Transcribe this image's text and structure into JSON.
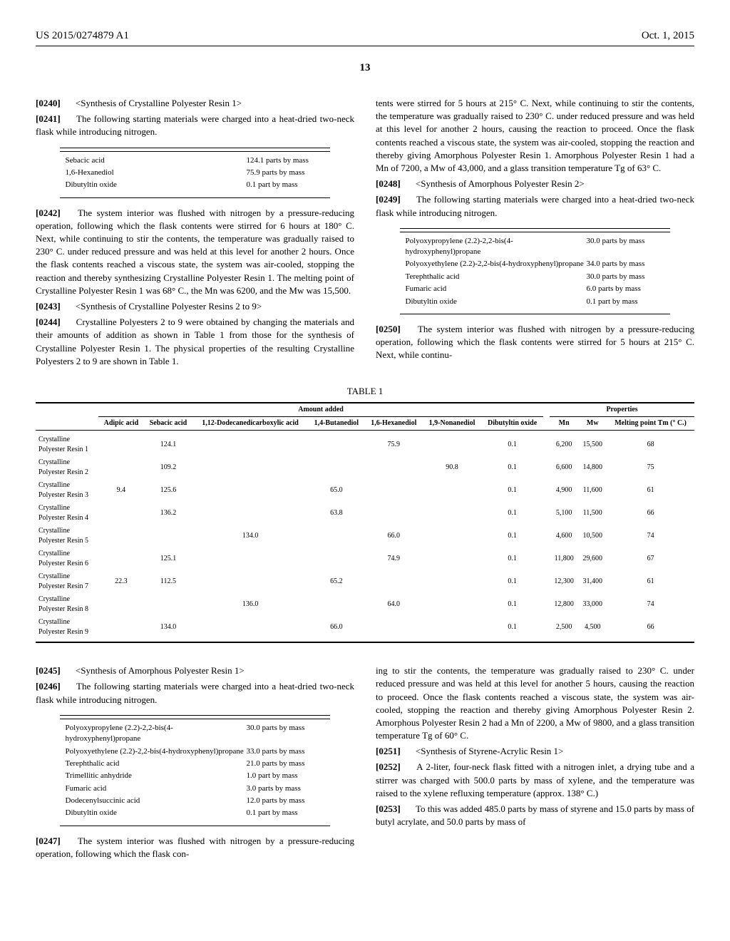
{
  "header": {
    "pub_num": "US 2015/0274879 A1",
    "pub_date": "Oct. 1, 2015"
  },
  "page_num": "13",
  "col1": {
    "p0240": {
      "num": "[0240]",
      "text": "<Synthesis of Crystalline Polyester Resin 1>"
    },
    "p0241": {
      "num": "[0241]",
      "text": "The following starting materials were charged into a heat-dried two-neck flask while introducing nitrogen."
    },
    "table1": [
      {
        "label": "Sebacic acid",
        "val": "124.1  parts by mass"
      },
      {
        "label": "1,6-Hexanediol",
        "val": "75.9  parts by mass"
      },
      {
        "label": "Dibutyltin oxide",
        "val": "0.1  part by mass"
      }
    ],
    "p0242": {
      "num": "[0242]",
      "text": "The system interior was flushed with nitrogen by a pressure-reducing operation, following which the flask contents were stirred for 6 hours at 180° C. Next, while continuing to stir the contents, the temperature was gradually raised to 230° C. under reduced pressure and was held at this level for another 2 hours. Once the flask contents reached a viscous state, the system was air-cooled, stopping the reaction and thereby synthesizing Crystalline Polyester Resin 1. The melting point of Crystalline Polyester Resin 1 was 68° C., the Mn was 6200, and the Mw was 15,500."
    },
    "p0243": {
      "num": "[0243]",
      "text": "<Synthesis of Crystalline Polyester Resins 2 to 9>"
    },
    "p0244": {
      "num": "[0244]",
      "text": "Crystalline Polyesters 2 to 9 were obtained by changing the materials and their amounts of addition as shown in Table 1 from those for the synthesis of Crystalline Polyester Resin 1. The physical properties of the resulting Crystalline Polyesters 2 to 9 are shown in Table 1."
    },
    "p0245": {
      "num": "[0245]",
      "text": "<Synthesis of Amorphous Polyester Resin 1>"
    },
    "p0246": {
      "num": "[0246]",
      "text": "The following starting materials were charged into a heat-dried two-neck flask while introducing nitrogen."
    },
    "table3": [
      {
        "label": "Polyoxypropylene (2.2)-2,2-bis(4-hydroxyphenyl)propane",
        "val": "30.0  parts by mass"
      },
      {
        "label": "Polyoxyethylene (2.2)-2,2-bis(4-hydroxyphenyl)propane",
        "val": "33.0  parts by mass"
      },
      {
        "label": "Terephthalic acid",
        "val": "21.0  parts by mass"
      },
      {
        "label": "Trimellitic anhydride",
        "val": "1.0  part by mass"
      },
      {
        "label": "Fumaric acid",
        "val": "3.0  parts by mass"
      },
      {
        "label": "Dodecenylsuccinic acid",
        "val": "12.0  parts by mass"
      },
      {
        "label": "Dibutyltin oxide",
        "val": "0.1  part by mass"
      }
    ],
    "p0247": {
      "num": "[0247]",
      "text": "The system interior was flushed with nitrogen by a pressure-reducing operation, following which the flask con-"
    }
  },
  "col2": {
    "cont1": "tents were stirred for 5 hours at 215° C. Next, while continuing to stir the contents, the temperature was gradually raised to 230° C. under reduced pressure and was held at this level for another 2 hours, causing the reaction to proceed. Once the flask contents reached a viscous state, the system was air-cooled, stopping the reaction and thereby giving Amorphous Polyester Resin 1. Amorphous Polyester Resin 1 had a Mn of 7200, a Mw of 43,000, and a glass transition temperature Tg of 63° C.",
    "p0248": {
      "num": "[0248]",
      "text": "<Synthesis of Amorphous Polyester Resin 2>"
    },
    "p0249": {
      "num": "[0249]",
      "text": "The following starting materials were charged into a heat-dried two-neck flask while introducing nitrogen."
    },
    "table2": [
      {
        "label": "Polyoxypropylene (2.2)-2,2-bis(4-hydroxyphenyl)propane",
        "val": "30.0  parts by mass"
      },
      {
        "label": "Polyoxyethylene (2.2)-2,2-bis(4-hydroxyphenyl)propane",
        "val": "34.0  parts by mass"
      },
      {
        "label": "Terephthalic acid",
        "val": "30.0  parts by mass"
      },
      {
        "label": "Fumaric acid",
        "val": "6.0  parts by mass"
      },
      {
        "label": "Dibutyltin oxide",
        "val": "0.1  part by mass"
      }
    ],
    "p0250": {
      "num": "[0250]",
      "text": "The system interior was flushed with nitrogen by a pressure-reducing operation, following which the flask contents were stirred for 5 hours at 215° C. Next, while continu-"
    },
    "cont2": "ing to stir the contents, the temperature was gradually raised to 230° C. under reduced pressure and was held at this level for another 5 hours, causing the reaction to proceed. Once the flask contents reached a viscous state, the system was air-cooled, stopping the reaction and thereby giving Amorphous Polyester Resin 2. Amorphous Polyester Resin 2 had a Mn of 2200, a Mw of 9800, and a glass transition temperature Tg of 60° C.",
    "p0251": {
      "num": "[0251]",
      "text": "<Synthesis of Styrene-Acrylic Resin 1>"
    },
    "p0252": {
      "num": "[0252]",
      "text": "A 2-liter, four-neck flask fitted with a nitrogen inlet, a drying tube and a stirrer was charged with 500.0 parts by mass of xylene, and the temperature was raised to the xylene refluxing temperature (approx. 138° C.)"
    },
    "p0253": {
      "num": "[0253]",
      "text": "To this was added 485.0 parts by mass of styrene and 15.0 parts by mass of butyl acrylate, and 50.0 parts by mass of"
    }
  },
  "table1_big": {
    "title": "TABLE 1",
    "grp_amount": "Amount added",
    "grp_props": "Properties",
    "cols": [
      "Adipic acid",
      "Sebacic acid",
      "1,12-Dodecanedicarboxylic acid",
      "1,4-Butanediol",
      "1,6-Hexanediol",
      "1,9-Nonanediol",
      "Dibutyltin oxide",
      "Mn",
      "Mw",
      "Melting point Tm (° C.)"
    ],
    "rows": [
      {
        "name": "Crystalline Polyester Resin 1",
        "vals": [
          "",
          "124.1",
          "",
          "",
          "75.9",
          "",
          "0.1",
          "6,200",
          "15,500",
          "68"
        ]
      },
      {
        "name": "Crystalline Polyester Resin 2",
        "vals": [
          "",
          "109.2",
          "",
          "",
          "",
          "90.8",
          "0.1",
          "6,600",
          "14,800",
          "75"
        ]
      },
      {
        "name": "Crystalline Polyester Resin 3",
        "vals": [
          "9.4",
          "125.6",
          "",
          "65.0",
          "",
          "",
          "0.1",
          "4,900",
          "11,600",
          "61"
        ]
      },
      {
        "name": "Crystalline Polyester Resin 4",
        "vals": [
          "",
          "136.2",
          "",
          "63.8",
          "",
          "",
          "0.1",
          "5,100",
          "11,500",
          "66"
        ]
      },
      {
        "name": "Crystalline Polyester Resin 5",
        "vals": [
          "",
          "",
          "134.0",
          "",
          "66.0",
          "",
          "0.1",
          "4,600",
          "10,500",
          "74"
        ]
      },
      {
        "name": "Crystalline Polyester Resin 6",
        "vals": [
          "",
          "125.1",
          "",
          "",
          "74.9",
          "",
          "0.1",
          "11,800",
          "29,600",
          "67"
        ]
      },
      {
        "name": "Crystalline Polyester Resin 7",
        "vals": [
          "22.3",
          "112.5",
          "",
          "65.2",
          "",
          "",
          "0.1",
          "12,300",
          "31,400",
          "61"
        ]
      },
      {
        "name": "Crystalline Polyester Resin 8",
        "vals": [
          "",
          "",
          "136.0",
          "",
          "64.0",
          "",
          "0.1",
          "12,800",
          "33,000",
          "74"
        ]
      },
      {
        "name": "Crystalline Polyester Resin 9",
        "vals": [
          "",
          "134.0",
          "",
          "66.0",
          "",
          "",
          "0.1",
          "2,500",
          "4,500",
          "66"
        ]
      }
    ]
  }
}
